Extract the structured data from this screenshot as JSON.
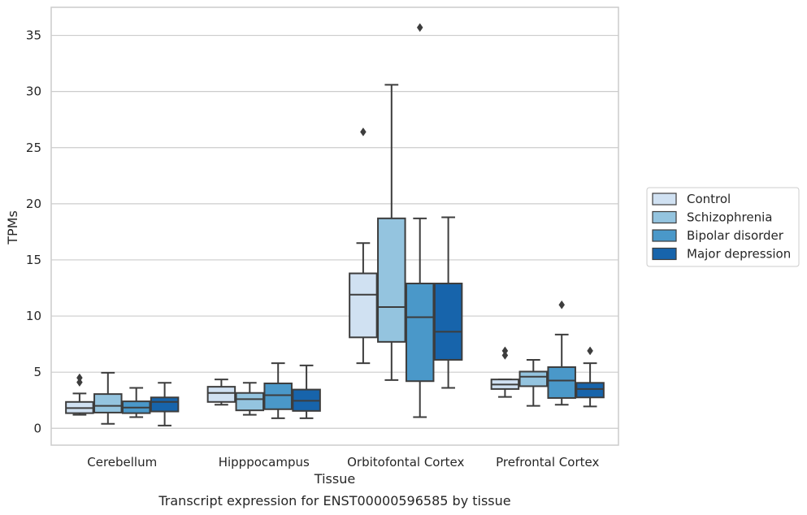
{
  "chart_data": {
    "type": "box",
    "xlabel": "Tissue",
    "ylabel": "TPMs",
    "caption": "Transcript expression for ENST00000596585 by tissue",
    "ylim": [
      -1.5,
      37.5
    ],
    "yticks": [
      0,
      5,
      10,
      15,
      20,
      25,
      30,
      35
    ],
    "grid": "horizontal",
    "legend_position": "right",
    "categories": [
      "Cerebellum",
      "Hipppocampus",
      "Orbitofontal Cortex",
      "Prefrontal Cortex"
    ],
    "series": [
      {
        "name": "Control",
        "color": "#d0e1f2",
        "boxes": [
          {
            "whislo": 1.2,
            "q1": 1.35,
            "med": 1.8,
            "q3": 2.35,
            "whishi": 3.1,
            "fliers": [
              4.1,
              4.5
            ]
          },
          {
            "whislo": 2.1,
            "q1": 2.35,
            "med": 3.15,
            "q3": 3.7,
            "whishi": 4.35,
            "fliers": []
          },
          {
            "whislo": 5.8,
            "q1": 8.1,
            "med": 11.9,
            "q3": 13.8,
            "whishi": 16.5,
            "fliers": [
              26.4
            ]
          },
          {
            "whislo": 2.8,
            "q1": 3.5,
            "med": 3.9,
            "q3": 4.35,
            "whishi": 4.35,
            "fliers": [
              6.5,
              6.9
            ]
          }
        ]
      },
      {
        "name": "Schizophrenia",
        "color": "#94c4df",
        "boxes": [
          {
            "whislo": 0.4,
            "q1": 1.4,
            "med": 2.0,
            "q3": 3.05,
            "whishi": 4.95,
            "fliers": []
          },
          {
            "whislo": 1.2,
            "q1": 1.6,
            "med": 2.6,
            "q3": 3.15,
            "whishi": 4.05,
            "fliers": []
          },
          {
            "whislo": 4.3,
            "q1": 7.7,
            "med": 10.8,
            "q3": 18.7,
            "whishi": 30.6,
            "fliers": []
          },
          {
            "whislo": 2.0,
            "q1": 3.75,
            "med": 4.6,
            "q3": 5.05,
            "whishi": 6.1,
            "fliers": []
          }
        ]
      },
      {
        "name": "Bipolar disorder",
        "color": "#4a98c9",
        "boxes": [
          {
            "whislo": 1.0,
            "q1": 1.35,
            "med": 1.85,
            "q3": 2.4,
            "whishi": 3.6,
            "fliers": []
          },
          {
            "whislo": 0.9,
            "q1": 1.7,
            "med": 2.95,
            "q3": 4.0,
            "whishi": 5.8,
            "fliers": []
          },
          {
            "whislo": 1.0,
            "q1": 4.2,
            "med": 9.9,
            "q3": 12.9,
            "whishi": 18.7,
            "fliers": [
              35.7
            ]
          },
          {
            "whislo": 2.1,
            "q1": 2.7,
            "med": 4.25,
            "q3": 5.45,
            "whishi": 8.35,
            "fliers": [
              11.0
            ]
          }
        ]
      },
      {
        "name": "Major depression",
        "color": "#1764ab",
        "boxes": [
          {
            "whislo": 0.25,
            "q1": 1.5,
            "med": 2.35,
            "q3": 2.75,
            "whishi": 4.05,
            "fliers": []
          },
          {
            "whislo": 0.9,
            "q1": 1.55,
            "med": 2.45,
            "q3": 3.45,
            "whishi": 5.6,
            "fliers": []
          },
          {
            "whislo": 3.6,
            "q1": 6.1,
            "med": 8.6,
            "q3": 12.9,
            "whishi": 18.8,
            "fliers": []
          },
          {
            "whislo": 1.95,
            "q1": 2.75,
            "med": 3.5,
            "q3": 4.05,
            "whishi": 5.8,
            "fliers": [
              6.9
            ]
          }
        ]
      }
    ]
  }
}
